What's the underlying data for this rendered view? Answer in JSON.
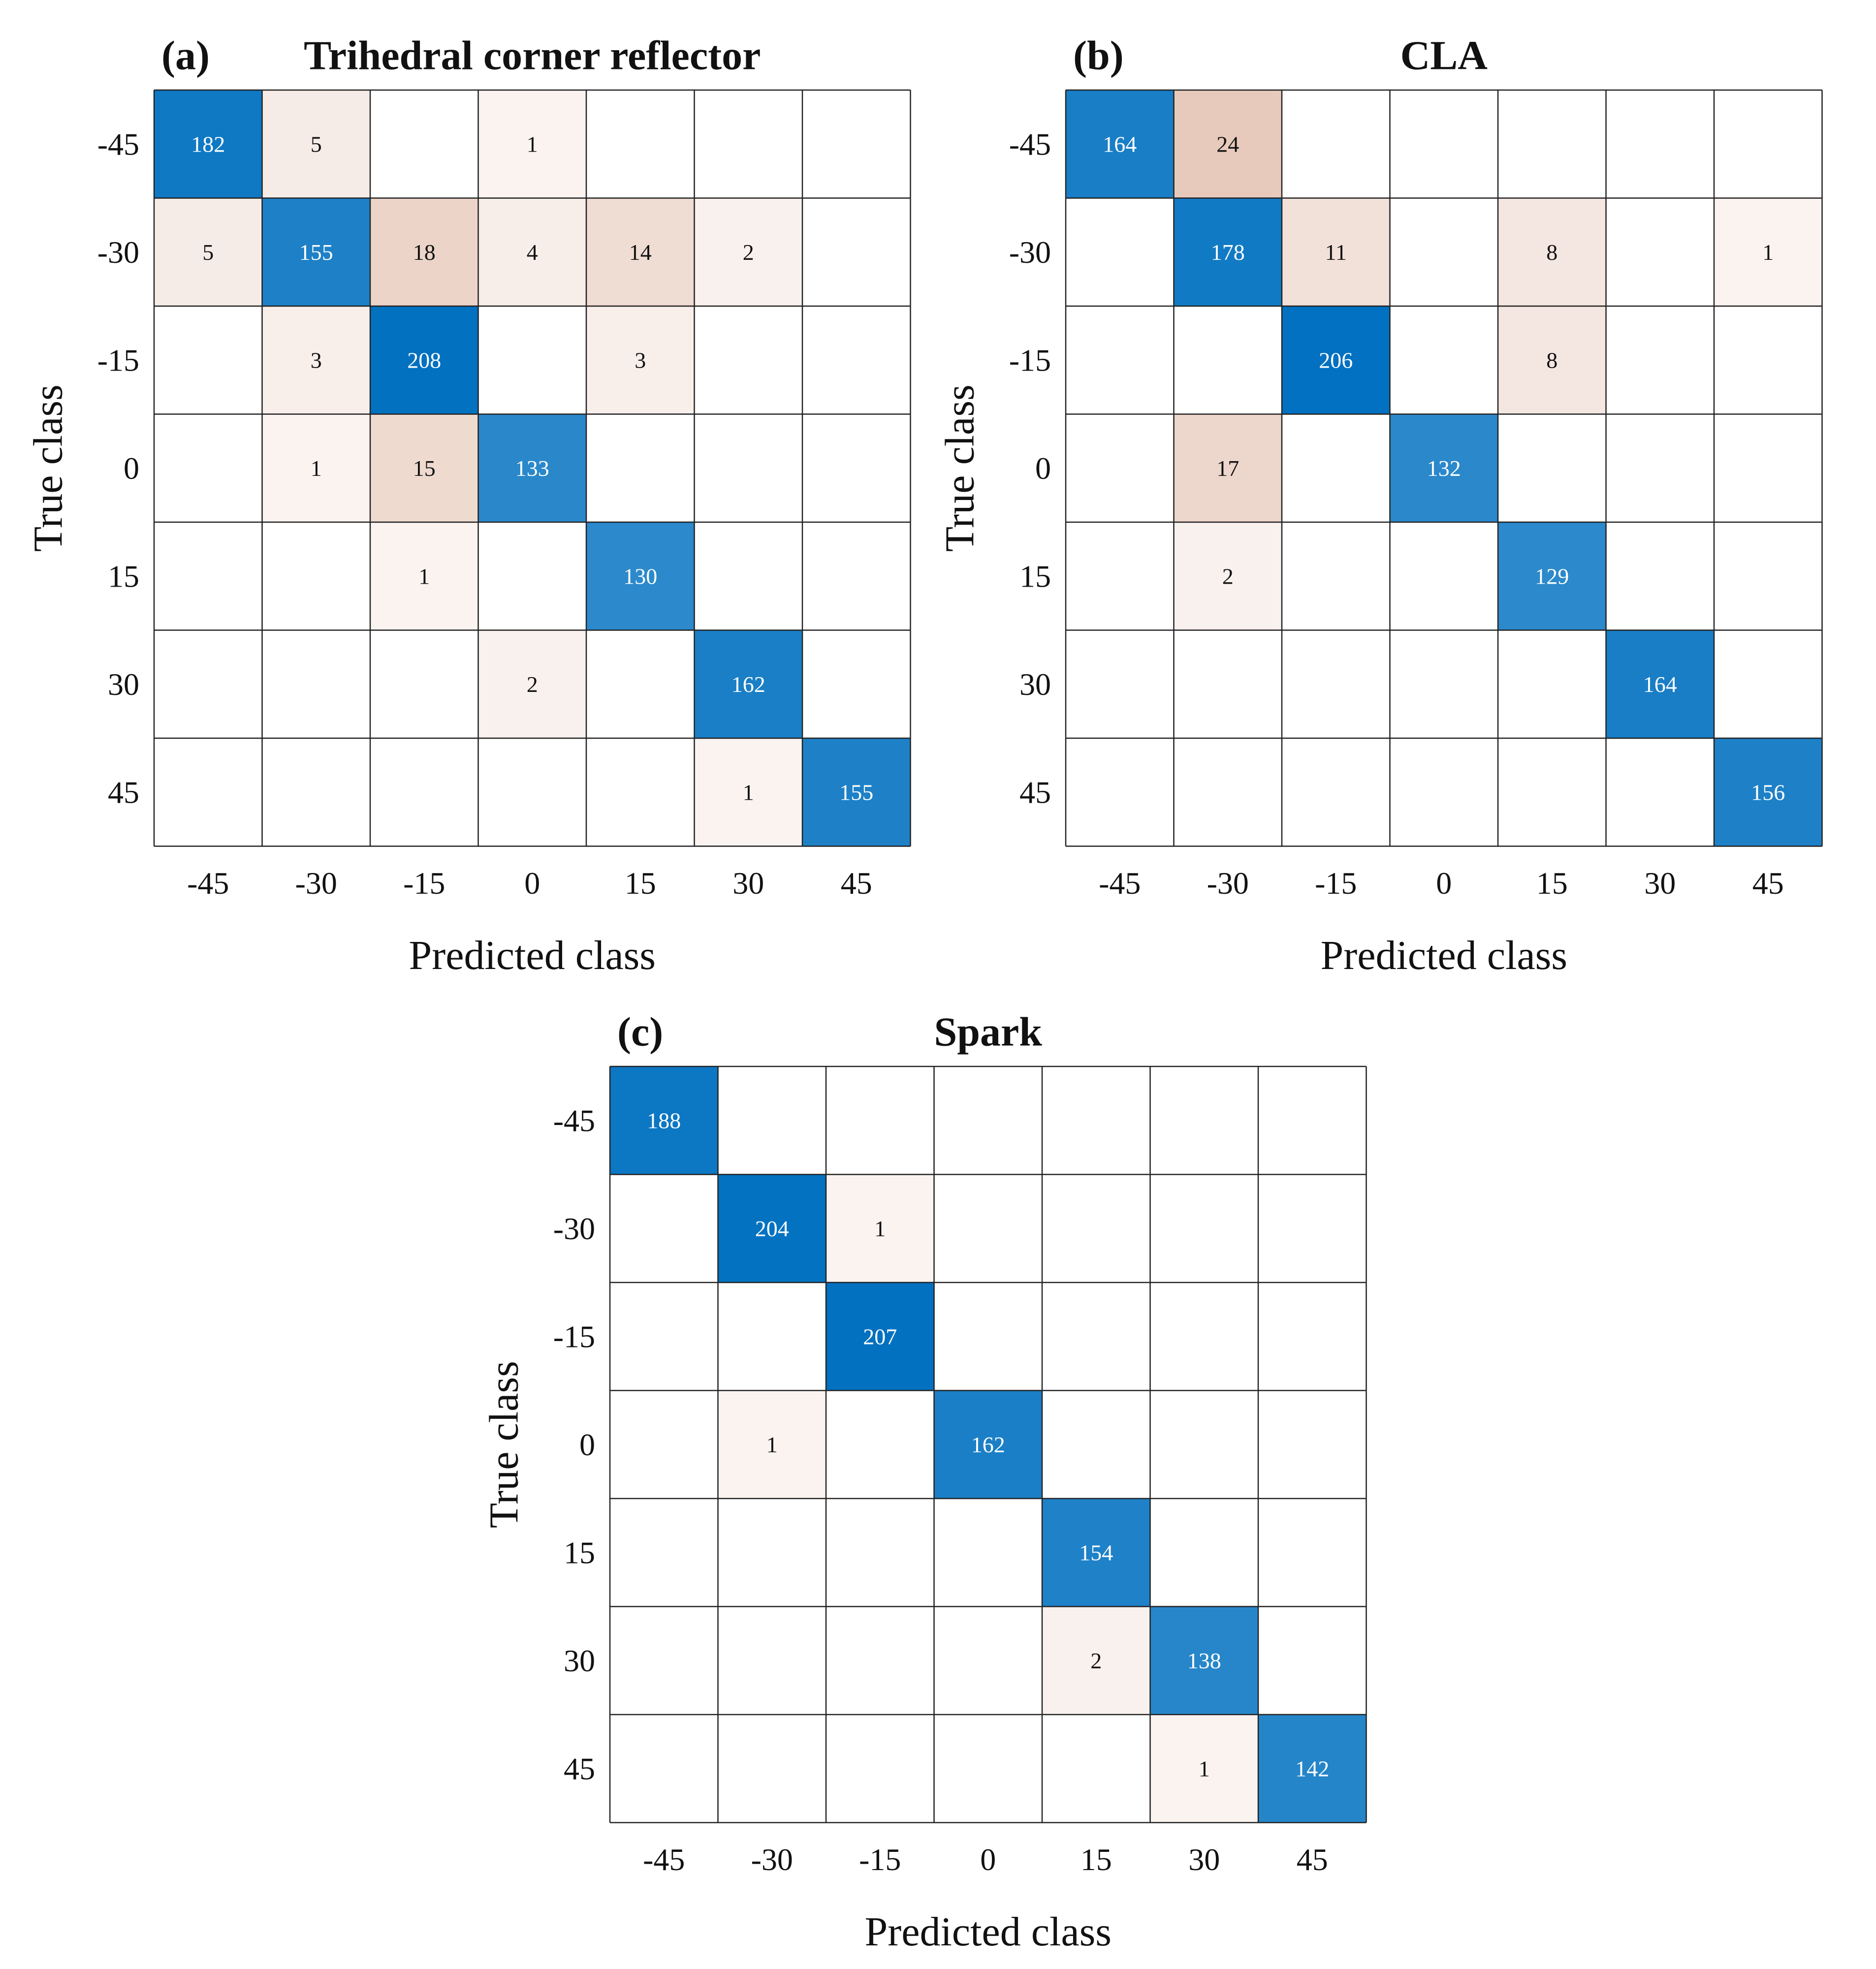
{
  "chart_data": [
    {
      "type": "heatmap",
      "panel_label": "(a)",
      "title": "Trihedral corner reflector",
      "xlabel": "Predicted class",
      "ylabel": "True class",
      "x_tick_labels": [
        "-45",
        "-30",
        "-15",
        "0",
        "15",
        "30",
        "45"
      ],
      "y_tick_labels": [
        "-45",
        "-30",
        "-15",
        "0",
        "15",
        "30",
        "45"
      ],
      "matrix": [
        [
          182,
          5,
          null,
          1,
          null,
          null,
          null
        ],
        [
          5,
          155,
          18,
          4,
          14,
          2,
          null
        ],
        [
          null,
          3,
          208,
          null,
          3,
          null,
          null
        ],
        [
          null,
          1,
          15,
          133,
          null,
          null,
          null
        ],
        [
          null,
          null,
          1,
          null,
          130,
          null,
          null
        ],
        [
          null,
          null,
          null,
          2,
          null,
          162,
          null
        ],
        [
          null,
          null,
          null,
          null,
          null,
          1,
          155
        ]
      ]
    },
    {
      "type": "heatmap",
      "panel_label": "(b)",
      "title": "CLA",
      "xlabel": "Predicted class",
      "ylabel": "True class",
      "x_tick_labels": [
        "-45",
        "-30",
        "-15",
        "0",
        "15",
        "30",
        "45"
      ],
      "y_tick_labels": [
        "-45",
        "-30",
        "-15",
        "0",
        "15",
        "30",
        "45"
      ],
      "matrix": [
        [
          164,
          24,
          null,
          null,
          null,
          null,
          null
        ],
        [
          null,
          178,
          11,
          null,
          8,
          null,
          1
        ],
        [
          null,
          null,
          206,
          null,
          8,
          null,
          null
        ],
        [
          null,
          17,
          null,
          132,
          null,
          null,
          null
        ],
        [
          null,
          2,
          null,
          null,
          129,
          null,
          null
        ],
        [
          null,
          null,
          null,
          null,
          null,
          164,
          null
        ],
        [
          null,
          null,
          null,
          null,
          null,
          null,
          156
        ]
      ]
    },
    {
      "type": "heatmap",
      "panel_label": "(c)",
      "title": "Spark",
      "xlabel": "Predicted class",
      "ylabel": "True class",
      "x_tick_labels": [
        "-45",
        "-30",
        "-15",
        "0",
        "15",
        "30",
        "45"
      ],
      "y_tick_labels": [
        "-45",
        "-30",
        "-15",
        "0",
        "15",
        "30",
        "45"
      ],
      "matrix": [
        [
          188,
          null,
          null,
          null,
          null,
          null,
          null
        ],
        [
          null,
          204,
          1,
          null,
          null,
          null,
          null
        ],
        [
          null,
          null,
          207,
          null,
          null,
          null,
          null
        ],
        [
          null,
          1,
          null,
          162,
          null,
          null,
          null
        ],
        [
          null,
          null,
          null,
          null,
          154,
          null,
          null
        ],
        [
          null,
          null,
          null,
          null,
          2,
          138,
          null
        ],
        [
          null,
          null,
          null,
          null,
          null,
          1,
          142
        ]
      ]
    }
  ],
  "colors": {
    "correct_base": "#ffffff",
    "correct_full": "#0070c0",
    "error_base": "#ffffff",
    "error_full": "#d9a992",
    "grid": "#222222",
    "text_dark": "#111111",
    "text_light": "#ffffff"
  }
}
